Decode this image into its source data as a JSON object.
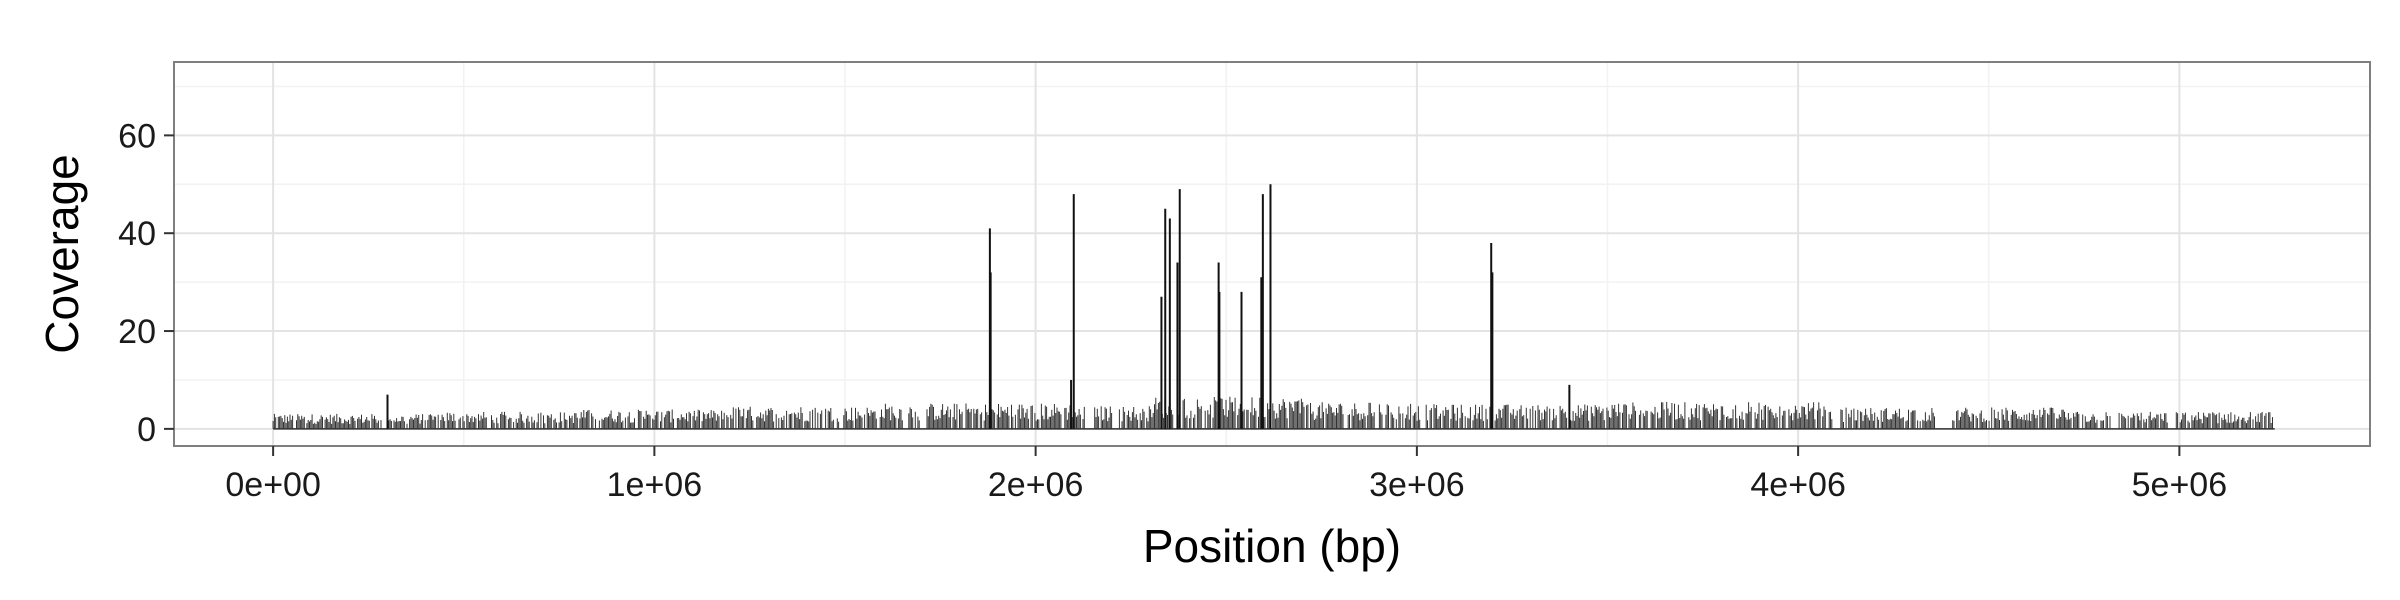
{
  "chart_data": {
    "type": "bar",
    "xlabel": "Position (bp)",
    "ylabel": "Coverage",
    "xlim": [
      -260000,
      5500000
    ],
    "ylim": [
      -3.5,
      75
    ],
    "x_ticks": [
      0,
      1000000,
      2000000,
      3000000,
      4000000,
      5000000
    ],
    "x_tick_labels": [
      "0e+00",
      "1e+06",
      "2e+06",
      "3e+06",
      "4e+06",
      "5e+06"
    ],
    "y_ticks": [
      0,
      20,
      40,
      60
    ],
    "y_tick_labels": [
      "0",
      "20",
      "40",
      "60"
    ],
    "grid": true,
    "bar_color": "#333333",
    "baseline_coverage": [
      {
        "from": 0,
        "to": 400000,
        "level": 2.8
      },
      {
        "from": 400000,
        "to": 800000,
        "level": 3.2
      },
      {
        "from": 800000,
        "to": 1200000,
        "level": 3.6
      },
      {
        "from": 1200000,
        "to": 1600000,
        "level": 4.2
      },
      {
        "from": 1600000,
        "to": 2100000,
        "level": 4.8
      },
      {
        "from": 2100000,
        "to": 2300000,
        "level": 4.3
      },
      {
        "from": 2300000,
        "to": 2700000,
        "level": 6.0
      },
      {
        "from": 2700000,
        "to": 3000000,
        "level": 5.0
      },
      {
        "from": 3000000,
        "to": 3500000,
        "level": 4.6
      },
      {
        "from": 3500000,
        "to": 4100000,
        "level": 5.0
      },
      {
        "from": 4100000,
        "to": 4700000,
        "level": 4.0
      },
      {
        "from": 4700000,
        "to": 5250000,
        "level": 3.2
      }
    ],
    "peaks": [
      {
        "x": 300000,
        "y": 7
      },
      {
        "x": 1880000,
        "y": 41
      },
      {
        "x": 1882000,
        "y": 32
      },
      {
        "x": 2100000,
        "y": 48
      },
      {
        "x": 2093000,
        "y": 10
      },
      {
        "x": 2330000,
        "y": 27
      },
      {
        "x": 2340000,
        "y": 45
      },
      {
        "x": 2352000,
        "y": 43
      },
      {
        "x": 2372000,
        "y": 34
      },
      {
        "x": 2378000,
        "y": 49
      },
      {
        "x": 2480000,
        "y": 34
      },
      {
        "x": 2482000,
        "y": 28
      },
      {
        "x": 2540000,
        "y": 28
      },
      {
        "x": 2592000,
        "y": 31
      },
      {
        "x": 2596000,
        "y": 48
      },
      {
        "x": 2616000,
        "y": 50
      },
      {
        "x": 3195000,
        "y": 38
      },
      {
        "x": 3198000,
        "y": 32
      },
      {
        "x": 3400000,
        "y": 9
      }
    ]
  }
}
